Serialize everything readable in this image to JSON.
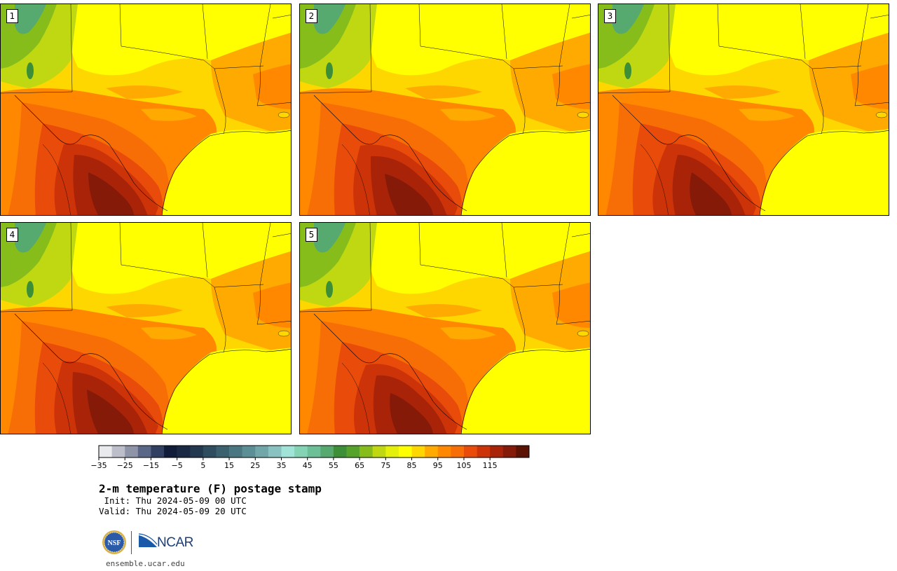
{
  "panels": [
    {
      "number": "1"
    },
    {
      "number": "2"
    },
    {
      "number": "3"
    },
    {
      "number": "4"
    },
    {
      "number": "5"
    }
  ],
  "colorbar": {
    "colors": [
      "#e9eaee",
      "#bcbfca",
      "#8e95a8",
      "#5b6786",
      "#313f63",
      "#111c3a",
      "#192944",
      "#23394f",
      "#2e4d5e",
      "#3a616d",
      "#4a7781",
      "#5c8e95",
      "#72a7aa",
      "#89c2c0",
      "#9fe4d6",
      "#83d3b4",
      "#6cbf97",
      "#56a96f",
      "#3d8f37",
      "#55a32a",
      "#87bd1b",
      "#c0d811",
      "#e4ef0a",
      "#ffff00",
      "#ffd700",
      "#ffaa00",
      "#ff8800",
      "#f76d06",
      "#e84b0a",
      "#cc3308",
      "#a82308",
      "#851a08",
      "#5c1203"
    ],
    "tick_labels": [
      "−35",
      "−25",
      "−15",
      "−5",
      "5",
      "15",
      "25",
      "35",
      "45",
      "55",
      "65",
      "75",
      "85",
      "95",
      "105",
      "115"
    ]
  },
  "title": "2-m temperature (F) postage stamp",
  "init_line": " Init: Thu 2024-05-09 00 UTC",
  "valid_line": "Valid: Thu 2024-05-09 20 UTC",
  "logos": {
    "ncar_text": "NCAR",
    "nsf_text": "NSF"
  },
  "url": "ensemble.ucar.edu"
}
